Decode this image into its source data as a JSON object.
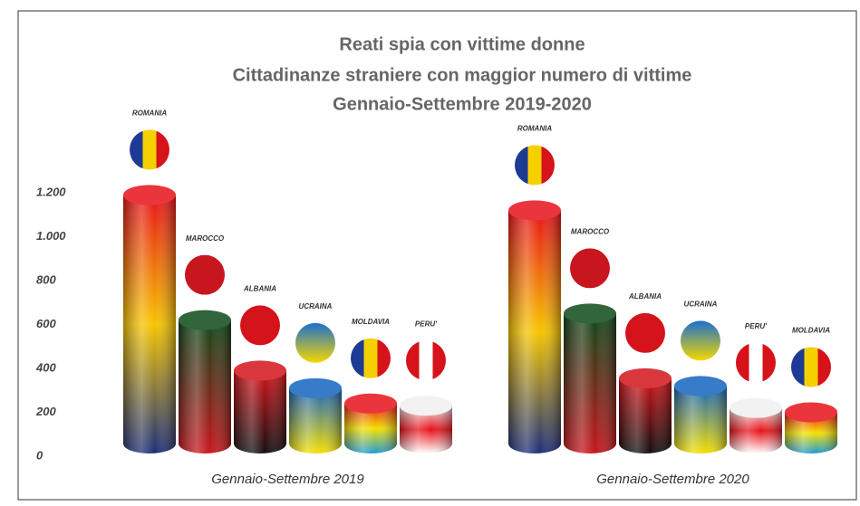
{
  "chart_data": {
    "type": "bar",
    "title": [
      "Reati spia con vittime donne",
      "Cittadinanze straniere con maggior numero di vittime",
      "Gennaio-Settembre 2019-2020"
    ],
    "ylim": [
      0,
      1200
    ],
    "yticks": [
      0,
      200,
      400,
      600,
      800,
      {
        "value": 1000,
        "label": "1.000"
      },
      {
        "value": 1200,
        "label": "1.200"
      }
    ],
    "groups": [
      {
        "name": "Gennaio-Settembre 2019",
        "labels": [
          "ROMANIA",
          "MAROCCO",
          "ALBANIA",
          "UCRAINA",
          "MOLDAVIA",
          "PERU'"
        ],
        "values": [
          1190,
          620,
          390,
          310,
          240,
          230
        ],
        "bar_colors": [
          [
            "#e8121a",
            "#f5c400",
            "#1d2f7a"
          ],
          [
            "#0e4a1a",
            "#c8161e"
          ],
          [
            "#d4141a",
            "#111111"
          ],
          [
            "#1565c0",
            "#f5e000"
          ],
          [
            "#e8121a",
            "#f5e000",
            "#1a9ad6"
          ],
          [
            "#f0f0f0",
            "#e8121a",
            "#ffffff"
          ]
        ],
        "flag_colors": [
          [
            "#1d3a94",
            "#f5d000",
            "#d6121a"
          ],
          [
            "#c8161e"
          ],
          [
            "#d4141a"
          ],
          [
            "#1a6fd0",
            "#f5d800"
          ],
          [
            "#1d3a94",
            "#f5d000",
            "#d6121a"
          ],
          [
            "#d6121a",
            "#ffffff",
            "#d6121a"
          ]
        ],
        "flag_direction": [
          "v",
          "v",
          "v",
          "h",
          "v",
          "v"
        ]
      },
      {
        "name": "Gennaio-Settembre 2020",
        "labels": [
          "ROMANIA",
          "MAROCCO",
          "ALBANIA",
          "UCRAINA",
          "PERU'",
          "MOLDAVIA"
        ],
        "values": [
          1120,
          650,
          355,
          320,
          220,
          200
        ],
        "bar_colors": [
          [
            "#e8121a",
            "#f5c400",
            "#1d2f7a"
          ],
          [
            "#0e4a1a",
            "#c8161e"
          ],
          [
            "#d4141a",
            "#111111"
          ],
          [
            "#1565c0",
            "#f5e000"
          ],
          [
            "#f0f0f0",
            "#e8121a",
            "#ffffff"
          ],
          [
            "#e8121a",
            "#f5e000",
            "#1a9ad6"
          ]
        ],
        "flag_colors": [
          [
            "#1d3a94",
            "#f5d000",
            "#d6121a"
          ],
          [
            "#c8161e"
          ],
          [
            "#d4141a"
          ],
          [
            "#1a6fd0",
            "#f5d800"
          ],
          [
            "#d6121a",
            "#ffffff",
            "#d6121a"
          ],
          [
            "#1d3a94",
            "#f5d000",
            "#d6121a"
          ]
        ],
        "flag_direction": [
          "v",
          "v",
          "v",
          "h",
          "v",
          "v"
        ]
      }
    ]
  }
}
